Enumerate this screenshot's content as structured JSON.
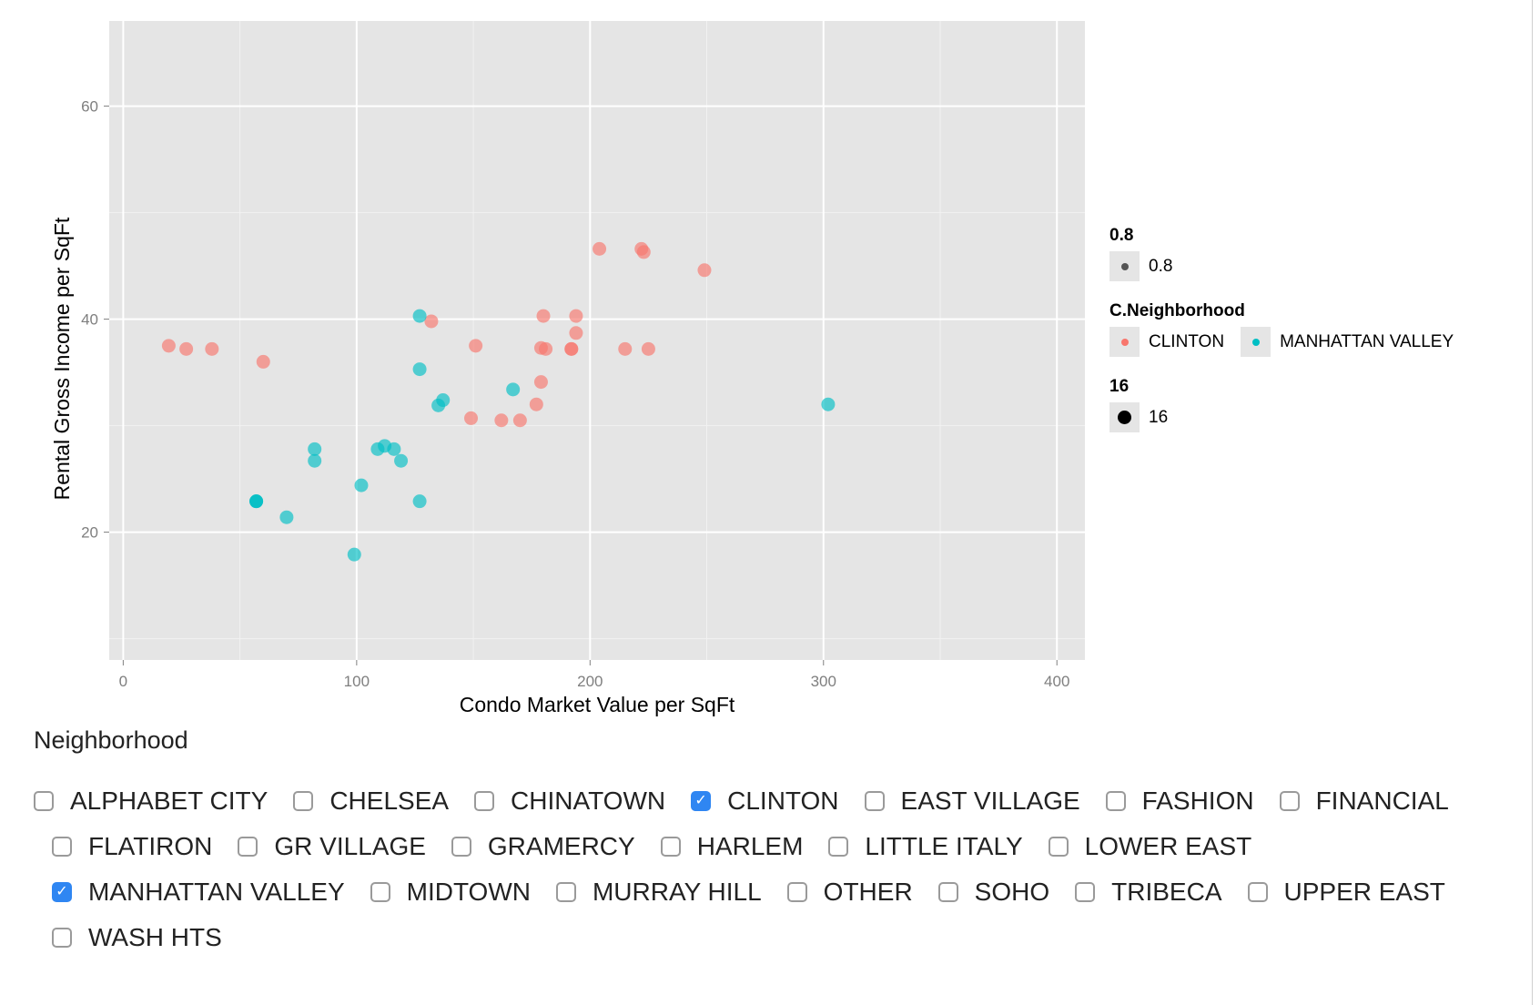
{
  "chart_data": {
    "type": "scatter",
    "xlabel": "Condo Market Value per SqFt",
    "ylabel": "Rental Gross Income per SqFt",
    "xlim": [
      -6,
      412
    ],
    "ylim": [
      8,
      68
    ],
    "xticks": [
      0,
      100,
      200,
      300,
      400
    ],
    "yticks": [
      20,
      40,
      60
    ],
    "grid": true,
    "legend_position": "right",
    "series": [
      {
        "name": "CLINTON",
        "color": "#F8766D",
        "points": [
          [
            19.5,
            37.5
          ],
          [
            27,
            37.2
          ],
          [
            38,
            37.2
          ],
          [
            60,
            36.0
          ],
          [
            132,
            39.8
          ],
          [
            151,
            37.5
          ],
          [
            149,
            30.7
          ],
          [
            162,
            30.5
          ],
          [
            170,
            30.5
          ],
          [
            177,
            32.0
          ],
          [
            179,
            37.3
          ],
          [
            181,
            37.2
          ],
          [
            179,
            34.1
          ],
          [
            180,
            40.3
          ],
          [
            194,
            40.3
          ],
          [
            194,
            38.7
          ],
          [
            192,
            37.2
          ],
          [
            192,
            37.2
          ],
          [
            204,
            46.6
          ],
          [
            215,
            37.2
          ],
          [
            222,
            46.6
          ],
          [
            223,
            46.3
          ],
          [
            225,
            37.2
          ],
          [
            249,
            44.6
          ]
        ]
      },
      {
        "name": "MANHATTAN VALLEY",
        "color": "#00BFC4",
        "points": [
          [
            57,
            22.9
          ],
          [
            57,
            22.9
          ],
          [
            57,
            22.9
          ],
          [
            70,
            21.4
          ],
          [
            82,
            27.8
          ],
          [
            82,
            26.7
          ],
          [
            99,
            17.9
          ],
          [
            102,
            24.4
          ],
          [
            109,
            27.8
          ],
          [
            112,
            28.1
          ],
          [
            116,
            27.8
          ],
          [
            119,
            26.7
          ],
          [
            127,
            40.3
          ],
          [
            127,
            35.3
          ],
          [
            127,
            22.9
          ],
          [
            135,
            31.9
          ],
          [
            137,
            32.4
          ],
          [
            167,
            33.4
          ],
          [
            302,
            32.0
          ]
        ]
      }
    ]
  },
  "legend": {
    "alpha_title": "0.8",
    "alpha_label": "0.8",
    "color_title": "C.Neighborhood",
    "color_labels": [
      "CLINTON",
      "MANHATTAN VALLEY"
    ],
    "size_title": "16",
    "size_label": "16"
  },
  "controls": {
    "label": "Neighborhood",
    "rows": [
      [
        {
          "label": "ALPHABET CITY",
          "checked": false
        },
        {
          "label": "CHELSEA",
          "checked": false
        },
        {
          "label": "CHINATOWN",
          "checked": false
        },
        {
          "label": "CLINTON",
          "checked": true
        },
        {
          "label": "EAST VILLAGE",
          "checked": false
        },
        {
          "label": "FASHION",
          "checked": false
        },
        {
          "label": "FINANCIAL",
          "checked": false
        }
      ],
      [
        {
          "label": "FLATIRON",
          "checked": false
        },
        {
          "label": "GR VILLAGE",
          "checked": false
        },
        {
          "label": "GRAMERCY",
          "checked": false
        },
        {
          "label": "HARLEM",
          "checked": false
        },
        {
          "label": "LITTLE ITALY",
          "checked": false
        },
        {
          "label": "LOWER EAST",
          "checked": false
        }
      ],
      [
        {
          "label": "MANHATTAN VALLEY",
          "checked": true
        },
        {
          "label": "MIDTOWN",
          "checked": false
        },
        {
          "label": "MURRAY HILL",
          "checked": false
        },
        {
          "label": "OTHER",
          "checked": false
        },
        {
          "label": "SOHO",
          "checked": false
        },
        {
          "label": "TRIBECA",
          "checked": false
        },
        {
          "label": "UPPER EAST",
          "checked": false
        }
      ],
      [
        {
          "label": "WASH HTS",
          "checked": false
        }
      ]
    ]
  }
}
